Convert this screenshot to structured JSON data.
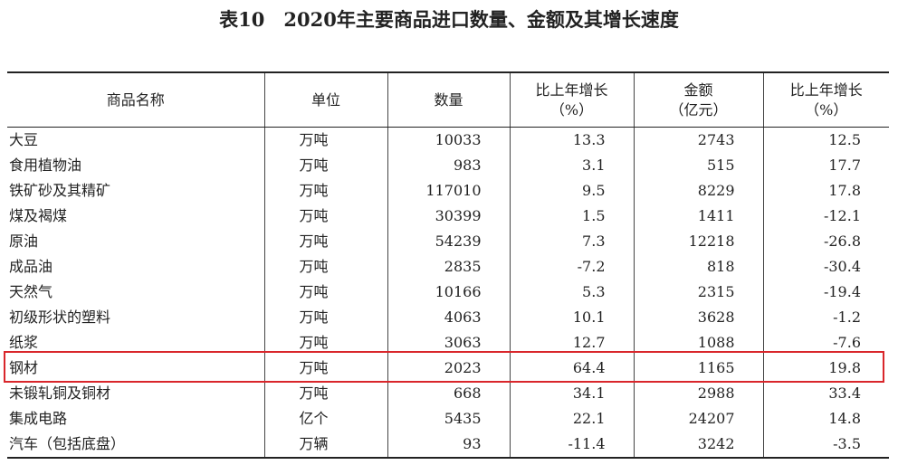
{
  "header": {
    "title": "表10　2020年主要商品进口数量、金额及其增长速度"
  },
  "table": {
    "columns": [
      "商品名称",
      "单位",
      "数量",
      "比上年增长\n（%）",
      "金额\n（亿元）",
      "比上年增长\n（%）"
    ],
    "rows": [
      [
        "大豆",
        "万吨",
        "10033",
        "13.3",
        "2743",
        "12.5"
      ],
      [
        "食用植物油",
        "万吨",
        "983",
        "3.1",
        "515",
        "17.7"
      ],
      [
        "铁矿砂及其精矿",
        "万吨",
        "117010",
        "9.5",
        "8229",
        "17.8"
      ],
      [
        "煤及褐煤",
        "万吨",
        "30399",
        "1.5",
        "1411",
        "-12.1"
      ],
      [
        "原油",
        "万吨",
        "54239",
        "7.3",
        "12218",
        "-26.8"
      ],
      [
        "成品油",
        "万吨",
        "2835",
        "-7.2",
        "818",
        "-30.4"
      ],
      [
        "天然气",
        "万吨",
        "10166",
        "5.3",
        "2315",
        "-19.4"
      ],
      [
        "初级形状的塑料",
        "万吨",
        "4063",
        "10.1",
        "3628",
        "-1.2"
      ],
      [
        "纸浆",
        "万吨",
        "3063",
        "12.7",
        "1088",
        "-7.6"
      ],
      [
        "钢材",
        "万吨",
        "2023",
        "64.4",
        "1165",
        "19.8"
      ],
      [
        "未锻轧铜及铜材",
        "万吨",
        "668",
        "34.1",
        "2988",
        "33.4"
      ],
      [
        "集成电路",
        "亿个",
        "5435",
        "22.1",
        "24207",
        "14.8"
      ],
      [
        "汽车（包括底盘）",
        "万辆",
        "93",
        "-11.4",
        "3242",
        "-3.5"
      ]
    ]
  }
}
